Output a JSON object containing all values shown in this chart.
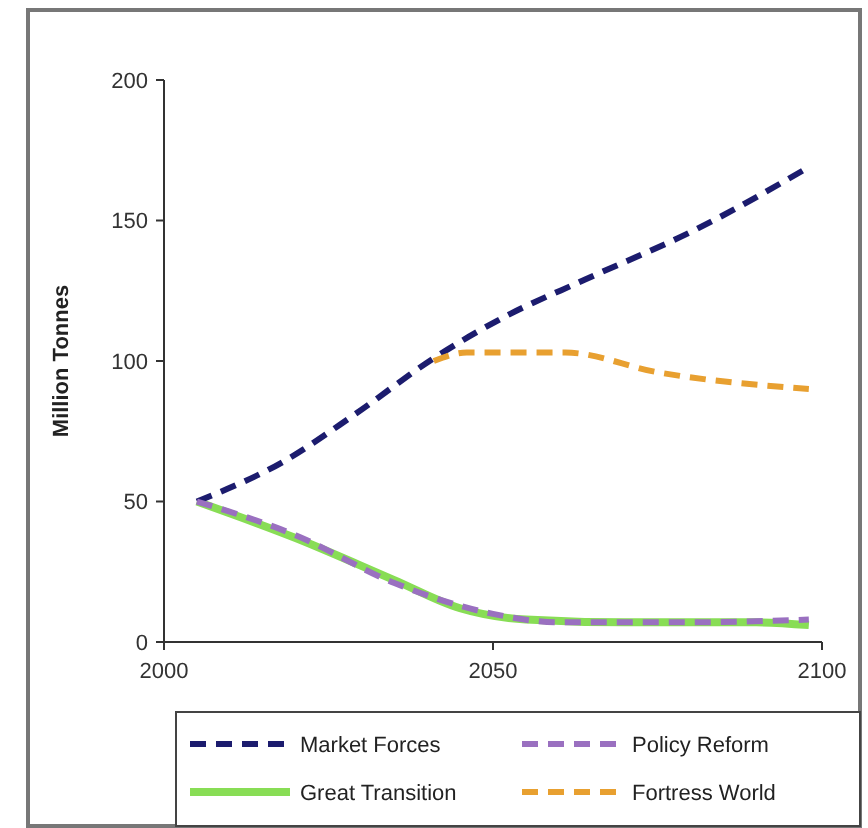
{
  "chart_data": {
    "type": "line",
    "ylabel": "Million Tonnes",
    "xlim": [
      2000,
      2100
    ],
    "xticks": [
      2000,
      2050,
      2100
    ],
    "ylim": [
      0,
      200
    ],
    "yticks": [
      0,
      50,
      100,
      150,
      200
    ],
    "grid": false,
    "legend": "bottom",
    "marker": "none",
    "series": [
      {
        "name": "Market Forces",
        "color": "#1c1c6e",
        "line_style": "dashed",
        "x": [
          2005,
          2018,
          2029,
          2041,
          2052,
          2064,
          2081,
          2098
        ],
        "values": [
          50,
          64,
          81,
          101,
          116,
          129,
          147,
          169
        ]
      },
      {
        "name": "Policy Reform",
        "color": "#9a70c0",
        "line_style": "dashed",
        "x": [
          2005,
          2020,
          2035,
          2050,
          2060,
          2080,
          2098
        ],
        "values": [
          50,
          38,
          21,
          10,
          7,
          7,
          8
        ]
      },
      {
        "name": "Great Transition",
        "color": "#88dd55",
        "line_style": "solid",
        "x": [
          2005,
          2020,
          2035,
          2045,
          2055,
          2070,
          2090,
          2098
        ],
        "values": [
          50,
          37,
          22,
          12,
          8,
          7,
          7,
          6
        ]
      },
      {
        "name": "Fortress World",
        "color": "#e8a030",
        "line_style": "dashed",
        "x": [
          2041,
          2046,
          2061,
          2075,
          2098
        ],
        "values": [
          100,
          103,
          103,
          96,
          90
        ]
      }
    ]
  }
}
